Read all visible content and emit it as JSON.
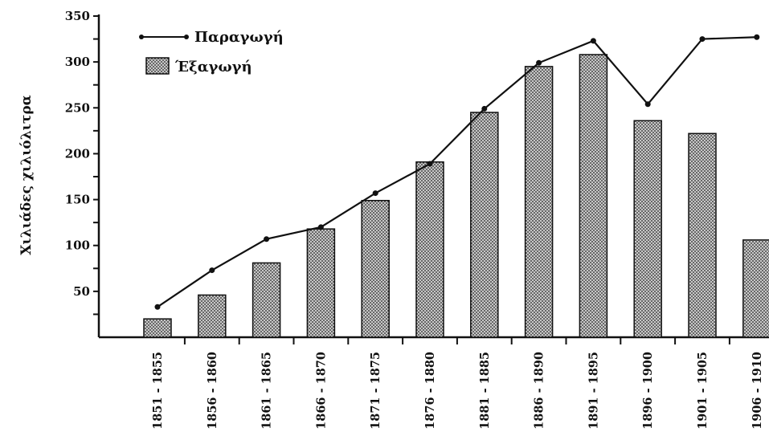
{
  "chart_data": {
    "type": "bar",
    "categories": [
      "1851 - 1855",
      "1856 - 1860",
      "1861 - 1865",
      "1866 - 1870",
      "1871 - 1875",
      "1876 - 1880",
      "1881 - 1885",
      "1886 - 1890",
      "1891 - 1895",
      "1896 - 1900",
      "1901 - 1905",
      "1906 - 1910"
    ],
    "series": [
      {
        "name": "Εξαγωγή",
        "kind": "bar",
        "values": [
          20,
          46,
          81,
          118,
          149,
          191,
          245,
          295,
          308,
          236,
          222,
          106
        ]
      },
      {
        "name": "Παραγωγή",
        "kind": "line",
        "values": [
          33,
          73,
          107,
          120,
          157,
          189,
          249,
          299,
          323,
          254,
          325,
          327
        ]
      }
    ],
    "ylabel": "Χιλιάδες χιλιόλιτρα",
    "ylim": [
      0,
      350
    ],
    "yticks": [
      50,
      100,
      150,
      200,
      250,
      300,
      350
    ],
    "grid": false,
    "legend_position": "top-left",
    "legend": {
      "line_label": "Παραγωγή",
      "bar_label": "Έξαγωγή"
    },
    "colors": {
      "axis": "#111111",
      "bar_fill": "#9a9a9a",
      "bar_stroke": "#111111",
      "line": "#111111"
    }
  }
}
